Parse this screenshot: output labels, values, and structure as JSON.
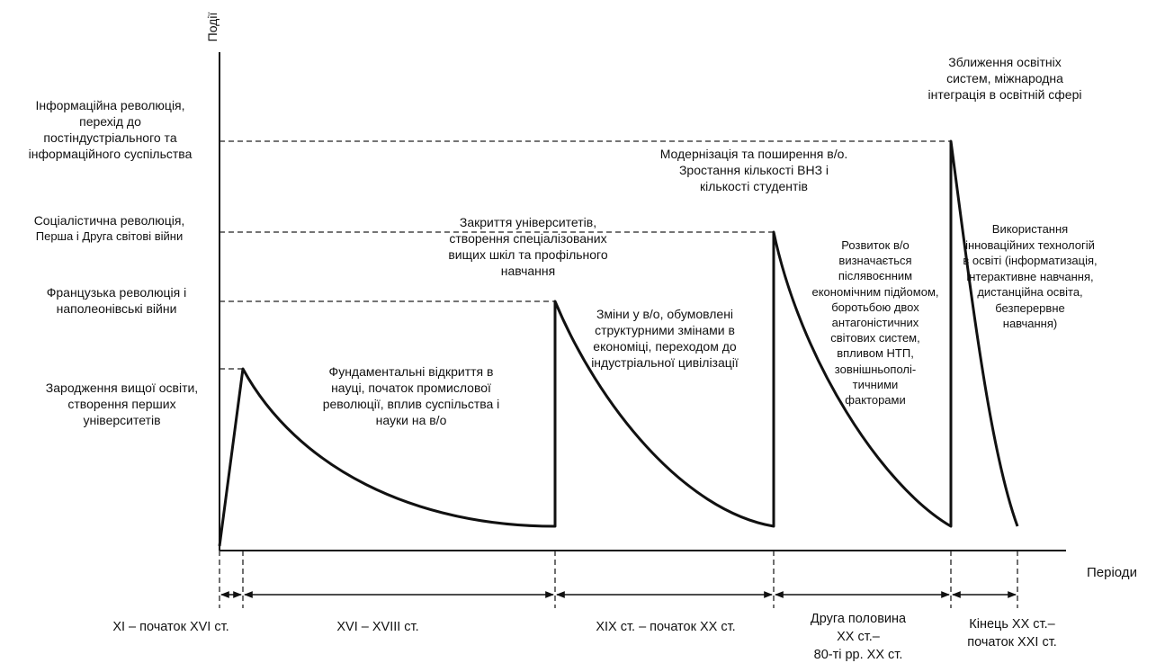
{
  "y_axis_title": "Події",
  "x_axis_title": "Періоди",
  "events": [
    "Зародження вищої освіти, створення перших університетів",
    "Французька революція і наполеонівські війни",
    "Соціалістична революція, Перша і Друга світові війни",
    "Інформаційна революція, перехід до постіндустріального та інформаційного суспільства"
  ],
  "event_lines": [
    [
      "Зародження вищої освіти,",
      "створення перших",
      "університетів"
    ],
    [
      "Французька революція і",
      "наполеонівські війни"
    ],
    [
      "Соціалістична революція,",
      "Перша і Друга світові війни"
    ],
    [
      "Інформаційна революція,",
      "перехід до",
      "постіндустріального та",
      "інформаційного суспільства"
    ]
  ],
  "annotations": [
    [
      "Фундаментальні відкриття в",
      "науці, початок промислової",
      "революції, вплив суспільства і",
      "науки на в/о"
    ],
    [
      "Закриття університетів,",
      "створення спеціалізованих",
      "вищих шкіл та профільного",
      "навчання"
    ],
    [
      "Зміни у в/о,    обумовлені",
      "структурними змінами в",
      "економіці, переходом до",
      "індустріальної цивілізації"
    ],
    [
      "Модернізація та поширення в/о.",
      "Зростання кількості ВНЗ і",
      "кількості студентів"
    ],
    [
      "Розвиток в/о",
      "визначається",
      "післявоєнним",
      "економічним підйомом,",
      "боротьбою двох",
      "антагоністичних",
      "світових систем,",
      "впливом НТП,",
      "зовнішньополі-",
      "тичними",
      "факторами"
    ],
    [
      "Зближення освітніх",
      "систем, міжнародна",
      "інтеграція в освітній сфері"
    ],
    [
      "Використання",
      "інноваційних технологій",
      "в освіті (інформатизація,",
      "інтерактивне навчання,",
      "дистанційна освіта,",
      "безперервне",
      "навчання)"
    ]
  ],
  "periods": [
    [
      "XI – початок XVI ст."
    ],
    [
      "XVI – XVIII ст."
    ],
    [
      "XIX ст. – початок XX ст."
    ],
    [
      "Друга половина",
      "XX ст.–",
      "80-ті  рр. XX ст."
    ],
    [
      "Кінець XX ст.–",
      "початок XXI ст."
    ]
  ],
  "colors": {
    "ink": "#111111",
    "background": "#ffffff"
  }
}
